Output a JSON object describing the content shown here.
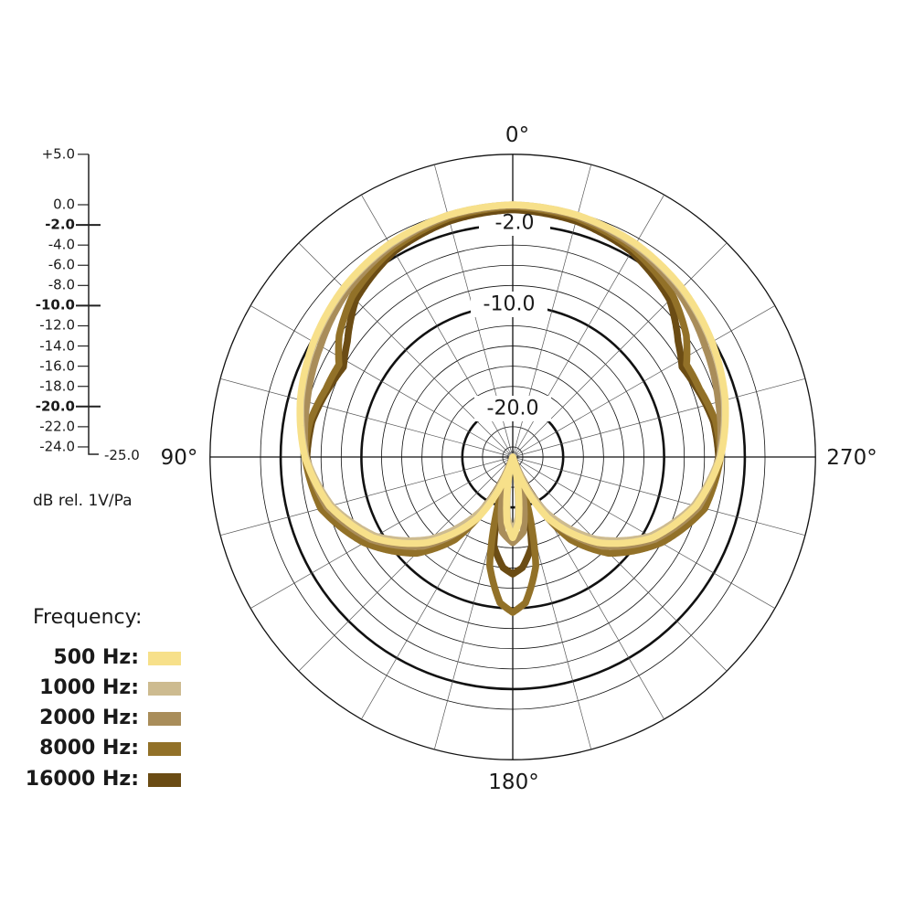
{
  "chart_data": {
    "type": "polar",
    "title": "",
    "angle_labels": {
      "top": "0°",
      "left": "90°",
      "bottom": "180°",
      "right": "270°"
    },
    "angle_grid_step_deg": 15,
    "radial_range_db": [
      -25,
      5
    ],
    "radial_grid_db": [
      -24,
      -22,
      -20,
      -18,
      -16,
      -14,
      -12,
      -10,
      -8,
      -6,
      -4,
      -2,
      0,
      5
    ],
    "radial_bold_db": [
      -2,
      -10,
      -20
    ],
    "ring_labels": [
      "-2.0",
      "-10.0",
      "-20.0"
    ],
    "scale": {
      "ticks": [
        {
          "label": "+5.0",
          "value": 5,
          "bold": false
        },
        {
          "label": "0.0",
          "value": 0,
          "bold": false
        },
        {
          "label": "-2.0",
          "value": -2,
          "bold": true
        },
        {
          "label": "-4.0",
          "value": -4,
          "bold": false
        },
        {
          "label": "-6.0",
          "value": -6,
          "bold": false
        },
        {
          "label": "-8.0",
          "value": -8,
          "bold": false
        },
        {
          "label": "-10.0",
          "value": -10,
          "bold": true
        },
        {
          "label": "-12.0",
          "value": -12,
          "bold": false
        },
        {
          "label": "-14.0",
          "value": -14,
          "bold": false
        },
        {
          "label": "-16.0",
          "value": -16,
          "bold": false
        },
        {
          "label": "-18.0",
          "value": -18,
          "bold": false
        },
        {
          "label": "-20.0",
          "value": -20,
          "bold": true
        },
        {
          "label": "-22.0",
          "value": -22,
          "bold": false
        },
        {
          "label": "-24.0",
          "value": -24,
          "bold": false
        }
      ],
      "min_label": "-25.0",
      "unit_label": "dB rel. 1V/Pa"
    },
    "legend_title": "Frequency:",
    "legend_position": "bottom-left",
    "symmetric": true,
    "series": [
      {
        "name": "500 Hz:",
        "color": "#f7e08a",
        "points": [
          [
            0,
            0
          ],
          [
            15,
            -0.2
          ],
          [
            30,
            -0.6
          ],
          [
            45,
            -1.3
          ],
          [
            60,
            -2.2
          ],
          [
            75,
            -3.2
          ],
          [
            90,
            -4.4
          ],
          [
            105,
            -6.2
          ],
          [
            120,
            -9
          ],
          [
            135,
            -13
          ],
          [
            150,
            -18
          ],
          [
            160,
            -23
          ],
          [
            165,
            -25
          ],
          [
            170,
            -22
          ],
          [
            175,
            -18.5
          ],
          [
            180,
            -17
          ]
        ]
      },
      {
        "name": "1000 Hz:",
        "color": "#cdbb90",
        "points": [
          [
            0,
            0
          ],
          [
            15,
            -0.2
          ],
          [
            30,
            -0.7
          ],
          [
            45,
            -1.4
          ],
          [
            60,
            -2.3
          ],
          [
            75,
            -3.3
          ],
          [
            90,
            -4.5
          ],
          [
            105,
            -6.4
          ],
          [
            120,
            -9.3
          ],
          [
            135,
            -13.5
          ],
          [
            150,
            -19
          ],
          [
            160,
            -24
          ],
          [
            165,
            -25
          ],
          [
            170,
            -22.5
          ],
          [
            175,
            -19
          ],
          [
            180,
            -17.5
          ]
        ]
      },
      {
        "name": "2000 Hz:",
        "color": "#a98d5a",
        "points": [
          [
            0,
            -0.1
          ],
          [
            15,
            -0.3
          ],
          [
            30,
            -0.9
          ],
          [
            45,
            -1.8
          ],
          [
            60,
            -3
          ],
          [
            75,
            -3.9
          ],
          [
            90,
            -4.5
          ],
          [
            105,
            -5.9
          ],
          [
            120,
            -8.7
          ],
          [
            135,
            -12.5
          ],
          [
            150,
            -18
          ],
          [
            160,
            -25
          ],
          [
            165,
            -21
          ],
          [
            172,
            -17.5
          ],
          [
            180,
            -16.5
          ]
        ]
      },
      {
        "name": "8000 Hz:",
        "color": "#927128",
        "points": [
          [
            0,
            -0.2
          ],
          [
            15,
            -0.5
          ],
          [
            30,
            -1.2
          ],
          [
            45,
            -2.5
          ],
          [
            55,
            -4
          ],
          [
            62,
            -5.5
          ],
          [
            70,
            -5.3
          ],
          [
            80,
            -4.6
          ],
          [
            90,
            -4.4
          ],
          [
            105,
            -5.3
          ],
          [
            120,
            -8
          ],
          [
            135,
            -11.5
          ],
          [
            145,
            -15
          ],
          [
            155,
            -21
          ],
          [
            160,
            -25
          ],
          [
            163,
            -20
          ],
          [
            168,
            -14
          ],
          [
            175,
            -10.5
          ],
          [
            180,
            -9.6
          ]
        ]
      },
      {
        "name": "16000 Hz:",
        "color": "#6b4c14",
        "points": [
          [
            0,
            -0.5
          ],
          [
            15,
            -0.8
          ],
          [
            30,
            -1.5
          ],
          [
            45,
            -3
          ],
          [
            55,
            -5
          ],
          [
            62,
            -6
          ],
          [
            70,
            -5.5
          ],
          [
            80,
            -4.8
          ],
          [
            90,
            -4.6
          ],
          [
            105,
            -5.8
          ],
          [
            120,
            -8.8
          ],
          [
            135,
            -12.5
          ],
          [
            145,
            -16
          ],
          [
            155,
            -22
          ],
          [
            160,
            -25
          ],
          [
            163,
            -21
          ],
          [
            168,
            -16
          ],
          [
            175,
            -14
          ],
          [
            180,
            -13.4
          ]
        ]
      }
    ]
  }
}
